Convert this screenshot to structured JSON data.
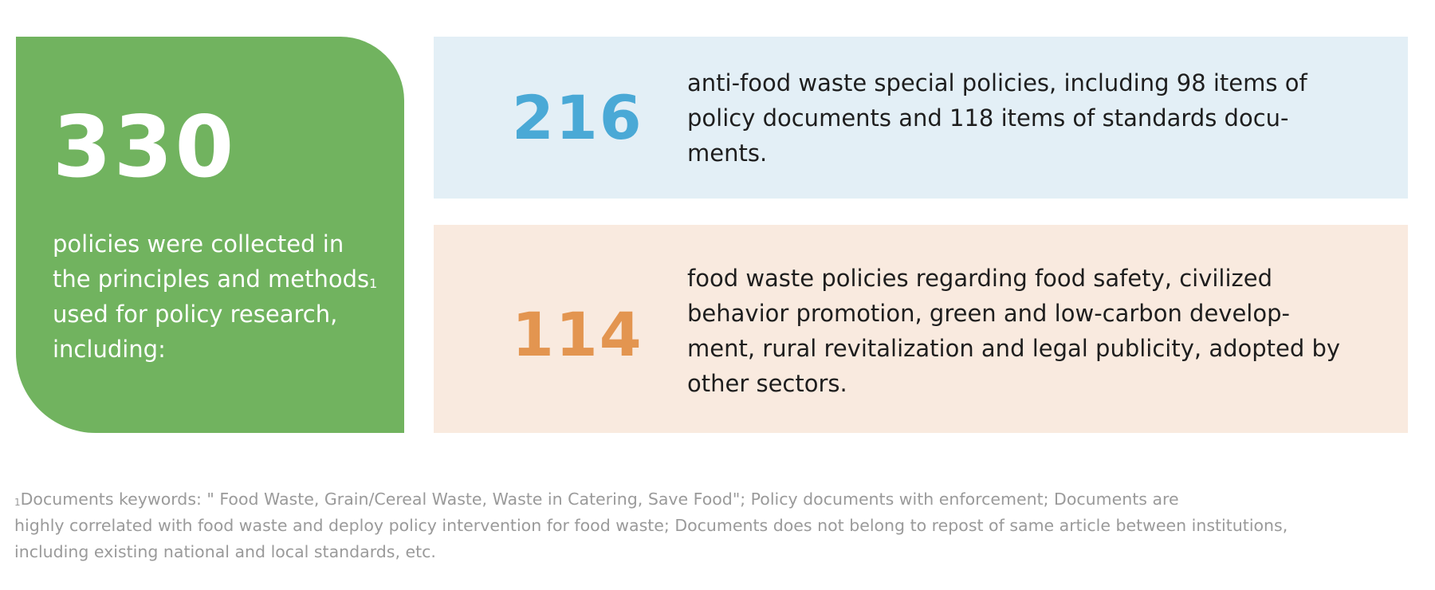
{
  "total": {
    "number": "330",
    "desc_lines": [
      "policies were collected in",
      "the principles and methods",
      "used for policy research,",
      "including:"
    ],
    "footnote_marker": "1"
  },
  "panels": [
    {
      "number": "216",
      "desc_lines": [
        "anti-food waste special policies, including 98 items of",
        "policy documents and 118 items of standards docu-",
        "ments."
      ]
    },
    {
      "number": "114",
      "desc_lines": [
        "food waste policies regarding food safety, civilized",
        "behavior promotion, green and low-carbon develop-",
        "ment, rural revitalization and legal publicity, adopted by",
        "other sectors."
      ]
    }
  ],
  "footnote": {
    "marker": "1",
    "lines": [
      "Documents keywords: \" Food Waste, Grain/Cereal Waste, Waste in Catering, Save Food\"; Policy documents with enforcement; Documents are",
      "highly correlated with food waste and deploy policy intervention for food waste; Documents does not belong to repost of same article between institutions,",
      "including existing national and local standards, etc."
    ]
  },
  "colors": {
    "green_card": "#71b35f",
    "blue_panel": "#e3eff6",
    "blue_number": "#4aa9d6",
    "orange_panel": "#f9eadf",
    "orange_number": "#e39550",
    "footnote_text": "#9a9a9a"
  }
}
